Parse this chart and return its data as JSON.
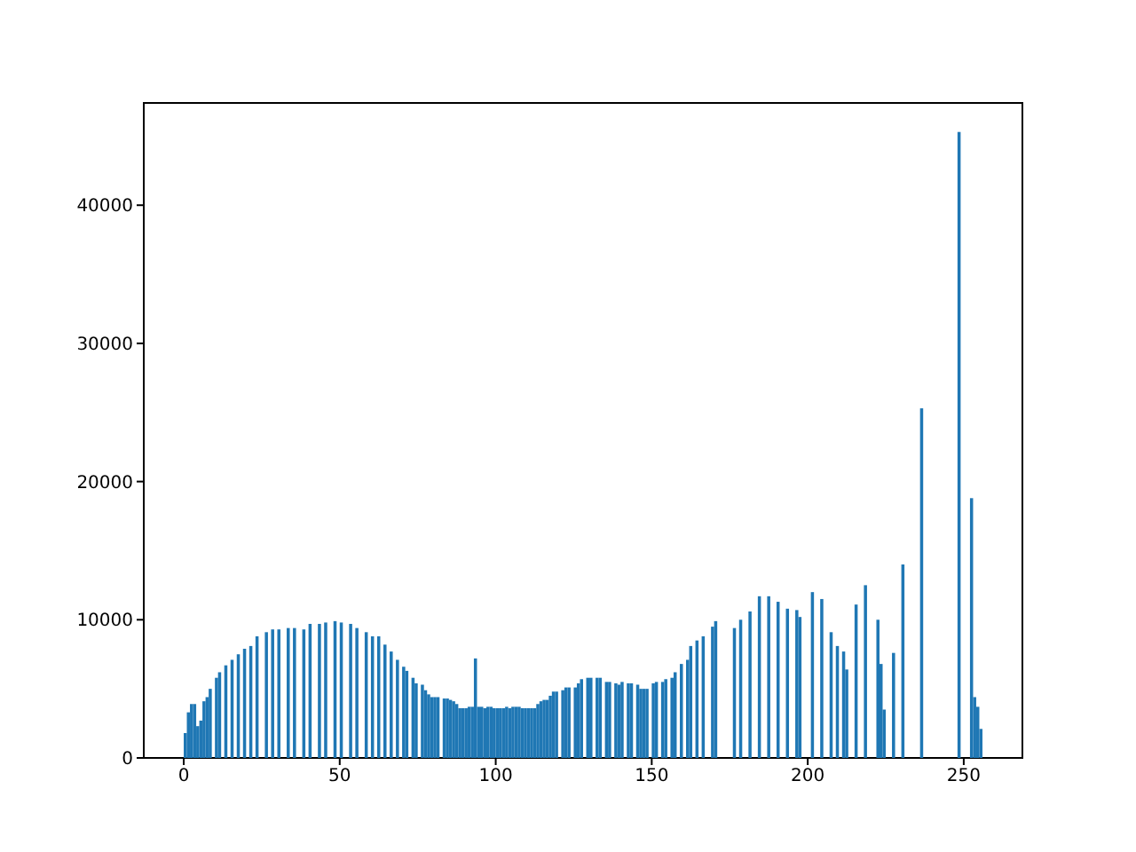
{
  "chart_data": {
    "type": "histogram",
    "bins": [
      0,
      1,
      2,
      3,
      4,
      5,
      6,
      7,
      8,
      9,
      10,
      11,
      12,
      13,
      14,
      15,
      16,
      17,
      18,
      19,
      20,
      21,
      22,
      23,
      24,
      25,
      26,
      27,
      28,
      29,
      30,
      31,
      32,
      33,
      34,
      35,
      36,
      37,
      38,
      39,
      40,
      41,
      42,
      43,
      44,
      45,
      46,
      47,
      48,
      49,
      50,
      51,
      52,
      53,
      54,
      55,
      56,
      57,
      58,
      59,
      60,
      61,
      62,
      63,
      64,
      65,
      66,
      67,
      68,
      69,
      70,
      71,
      72,
      73,
      74,
      75,
      76,
      77,
      78,
      79,
      80,
      81,
      82,
      83,
      84,
      85,
      86,
      87,
      88,
      89,
      90,
      91,
      92,
      93,
      94,
      95,
      96,
      97,
      98,
      99,
      100,
      101,
      102,
      103,
      104,
      105,
      106,
      107,
      108,
      109,
      110,
      111,
      112,
      113,
      114,
      115,
      116,
      117,
      118,
      119,
      120,
      121,
      122,
      123,
      124,
      125,
      126,
      127,
      128,
      129,
      130,
      131,
      132,
      133,
      134,
      135,
      136,
      137,
      138,
      139,
      140,
      141,
      142,
      143,
      144,
      145,
      146,
      147,
      148,
      149,
      150,
      151,
      152,
      153,
      154,
      155,
      156,
      157,
      158,
      159,
      160,
      161,
      162,
      163,
      164,
      165,
      166,
      167,
      168,
      169,
      170,
      171,
      172,
      173,
      174,
      175,
      176,
      177,
      178,
      179,
      180,
      181,
      182,
      183,
      184,
      185,
      186,
      187,
      188,
      189,
      190,
      191,
      192,
      193,
      194,
      195,
      196,
      197,
      198,
      199,
      200,
      201,
      202,
      203,
      204,
      205,
      206,
      207,
      208,
      209,
      210,
      211,
      212,
      213,
      214,
      215,
      216,
      217,
      218,
      219,
      220,
      221,
      222,
      223,
      224,
      225,
      226,
      227,
      228,
      229,
      230,
      231,
      232,
      233,
      234,
      235,
      236,
      237,
      238,
      239,
      240,
      241,
      242,
      243,
      244,
      245,
      246,
      247,
      248,
      249,
      250,
      251,
      252,
      253,
      254,
      255,
      256
    ],
    "values": [
      1800,
      3300,
      3900,
      3900,
      2300,
      2700,
      4100,
      4400,
      5000,
      0,
      5800,
      6200,
      0,
      6700,
      0,
      7100,
      0,
      7500,
      0,
      7900,
      0,
      8100,
      0,
      8800,
      0,
      0,
      9100,
      0,
      9300,
      0,
      9300,
      0,
      0,
      9400,
      0,
      9400,
      0,
      0,
      9300,
      0,
      9700,
      0,
      0,
      9700,
      0,
      9800,
      0,
      0,
      9900,
      0,
      9800,
      0,
      0,
      9700,
      0,
      9400,
      0,
      0,
      9100,
      0,
      8800,
      0,
      8800,
      0,
      8200,
      0,
      7700,
      0,
      7100,
      0,
      6600,
      6300,
      0,
      5800,
      5400,
      0,
      5300,
      4900,
      4600,
      4400,
      4400,
      4400,
      0,
      4300,
      4300,
      4200,
      4100,
      3900,
      3600,
      3600,
      3600,
      3700,
      3700,
      7200,
      3700,
      3700,
      3600,
      3700,
      3700,
      3600,
      3600,
      3600,
      3600,
      3700,
      3600,
      3700,
      3700,
      3700,
      3600,
      3600,
      3600,
      3600,
      3600,
      3900,
      4100,
      4200,
      4200,
      4500,
      4800,
      4800,
      0,
      4900,
      5100,
      5100,
      0,
      5100,
      5400,
      5700,
      0,
      5800,
      5800,
      0,
      5800,
      5800,
      0,
      5500,
      5500,
      0,
      5400,
      5300,
      5500,
      0,
      5400,
      5400,
      0,
      5300,
      5000,
      5000,
      5000,
      0,
      5400,
      5500,
      0,
      5500,
      5700,
      0,
      5800,
      6200,
      0,
      6800,
      0,
      7100,
      8100,
      0,
      8500,
      0,
      8800,
      0,
      0,
      9500,
      9900,
      0,
      0,
      0,
      0,
      0,
      9400,
      0,
      10000,
      0,
      0,
      10600,
      0,
      0,
      11700,
      0,
      0,
      11700,
      0,
      0,
      11300,
      0,
      0,
      10800,
      0,
      0,
      10700,
      10200,
      0,
      0,
      0,
      12000,
      0,
      0,
      11500,
      0,
      0,
      9100,
      0,
      8100,
      0,
      7700,
      6400,
      0,
      0,
      11100,
      0,
      0,
      12500,
      0,
      0,
      0,
      10000,
      6800,
      3500,
      0,
      0,
      7600,
      0,
      0,
      14000,
      0,
      0,
      0,
      0,
      0,
      25300,
      0,
      0,
      0,
      0,
      0,
      0,
      0,
      0,
      0,
      0,
      0,
      45300,
      0,
      0,
      0,
      18800,
      4400,
      3700,
      2100
    ],
    "color": "#1f77b4",
    "xlim": [
      -12.8,
      268.8
    ],
    "xticks": [
      0,
      50,
      100,
      150,
      200,
      250
    ],
    "ylim": [
      0,
      47400
    ],
    "yticks": [
      0,
      10000,
      20000,
      30000,
      40000
    ]
  }
}
